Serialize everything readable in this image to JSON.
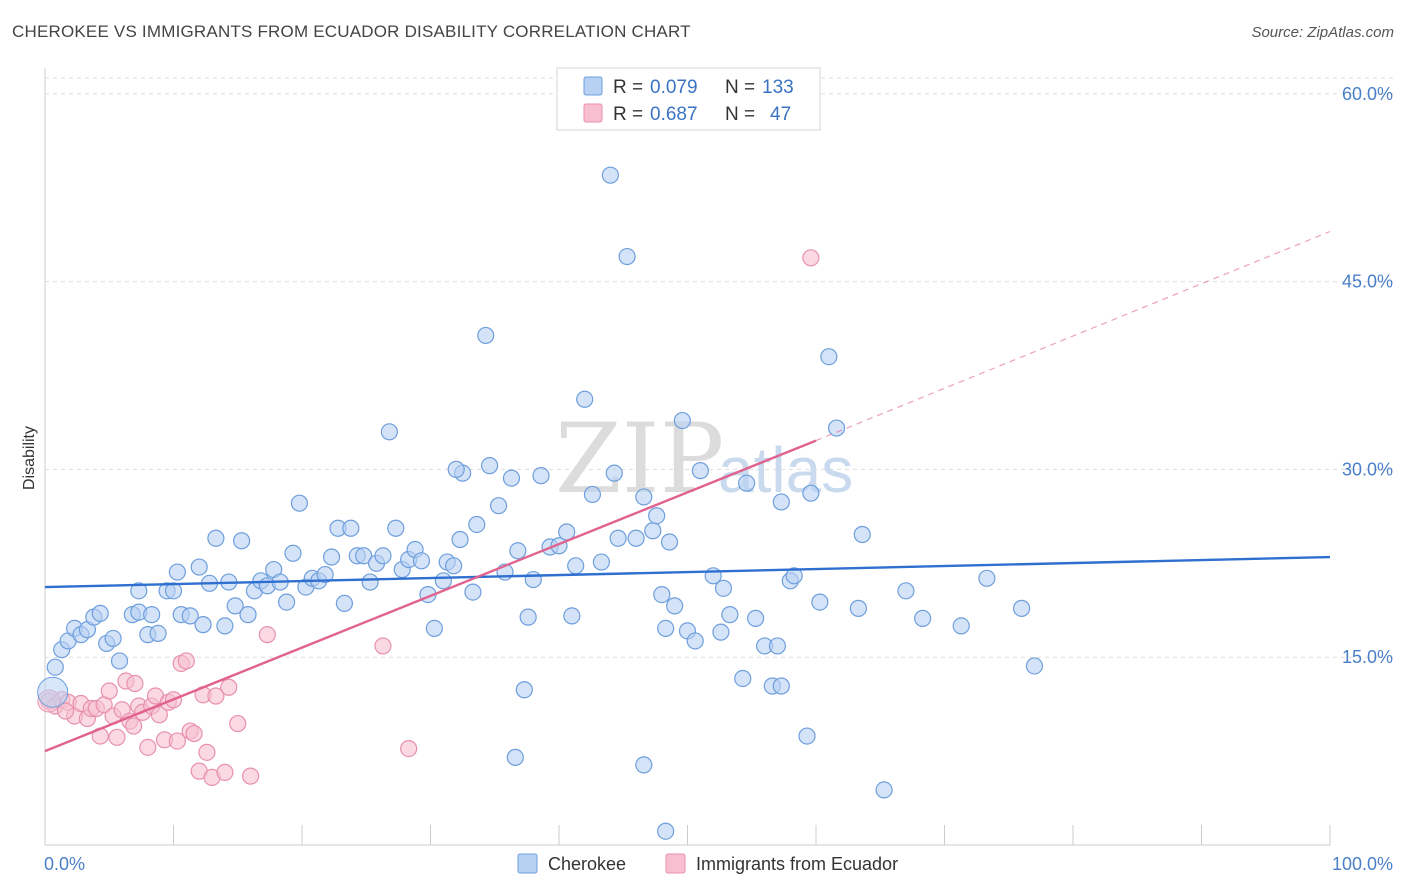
{
  "title": "CHEROKEE VS IMMIGRANTS FROM ECUADOR DISABILITY CORRELATION CHART",
  "source": "Source: ZipAtlas.com",
  "watermark": {
    "main": "ZIP",
    "sub": "atlas"
  },
  "colors": {
    "cherokee_fill": "#b7d1f3",
    "cherokee_stroke": "#6e9fdc",
    "cherokee_line": "#2f6fcf",
    "ecuador_fill": "#f7bfd0",
    "ecuador_stroke": "#e891ad",
    "ecuador_line": "#e0628e",
    "tick_text": "#4a7fc8",
    "grid": "#dddddd"
  },
  "legend": {
    "rows": [
      {
        "r_label": "R =",
        "r_value": "0.079",
        "n_label": "N =",
        "n_value": "133"
      },
      {
        "r_label": "R =",
        "r_value": "0.687",
        "n_label": "N =",
        "n_value": "47"
      }
    ]
  },
  "bottom_legend": [
    "Cherokee",
    "Immigrants from Ecuador"
  ],
  "chart_data": {
    "type": "scatter",
    "title": "CHEROKEE VS IMMIGRANTS FROM ECUADOR DISABILITY CORRELATION CHART",
    "xlabel": "",
    "ylabel": "Disability",
    "xlim": [
      0,
      100
    ],
    "ylim": [
      0,
      61.5
    ],
    "x_tick_labels": [
      {
        "value": 0,
        "label": "0.0%"
      },
      {
        "value": 100,
        "label": "100.0%"
      }
    ],
    "y_tick_labels": [
      {
        "value": 15,
        "label": "15.0%"
      },
      {
        "value": 30,
        "label": "30.0%"
      },
      {
        "value": 45,
        "label": "45.0%"
      },
      {
        "value": 60,
        "label": "60.0%"
      }
    ],
    "grid": "horizontal dashed",
    "legend_position": "top-center",
    "series": [
      {
        "name": "Cherokee",
        "trend": {
          "x0": 0,
          "y0": 20.6,
          "x1": 100,
          "y1": 23.0
        },
        "points": [
          [
            0.8,
            14.2
          ],
          [
            1.3,
            15.6
          ],
          [
            1.8,
            16.3
          ],
          [
            2.3,
            17.3
          ],
          [
            2.8,
            16.8
          ],
          [
            3.3,
            17.2
          ],
          [
            3.8,
            18.2
          ],
          [
            4.3,
            18.5
          ],
          [
            4.8,
            16.1
          ],
          [
            5.3,
            16.5
          ],
          [
            5.8,
            14.7
          ],
          [
            6.8,
            18.4
          ],
          [
            7.3,
            18.6
          ],
          [
            7.3,
            20.3
          ],
          [
            8.0,
            16.8
          ],
          [
            8.3,
            18.4
          ],
          [
            8.8,
            16.9
          ],
          [
            9.5,
            20.3
          ],
          [
            10.0,
            20.3
          ],
          [
            10.3,
            21.8
          ],
          [
            10.6,
            18.4
          ],
          [
            11.3,
            18.3
          ],
          [
            12.0,
            22.2
          ],
          [
            12.3,
            17.6
          ],
          [
            12.8,
            20.9
          ],
          [
            13.3,
            24.5
          ],
          [
            14.0,
            17.5
          ],
          [
            14.3,
            21.0
          ],
          [
            14.8,
            19.1
          ],
          [
            15.3,
            24.3
          ],
          [
            15.8,
            18.4
          ],
          [
            16.3,
            20.3
          ],
          [
            16.8,
            21.1
          ],
          [
            17.3,
            20.7
          ],
          [
            17.8,
            22.0
          ],
          [
            18.3,
            21.0
          ],
          [
            18.8,
            19.4
          ],
          [
            19.3,
            23.3
          ],
          [
            19.8,
            27.3
          ],
          [
            20.3,
            20.6
          ],
          [
            20.8,
            21.3
          ],
          [
            21.3,
            21.1
          ],
          [
            21.8,
            21.6
          ],
          [
            22.3,
            23.0
          ],
          [
            22.8,
            25.3
          ],
          [
            23.3,
            19.3
          ],
          [
            23.8,
            25.3
          ],
          [
            24.3,
            23.1
          ],
          [
            24.8,
            23.1
          ],
          [
            25.3,
            21.0
          ],
          [
            25.8,
            22.5
          ],
          [
            26.3,
            23.1
          ],
          [
            26.8,
            33.0
          ],
          [
            27.3,
            25.3
          ],
          [
            27.8,
            22.0
          ],
          [
            28.3,
            22.8
          ],
          [
            28.8,
            23.6
          ],
          [
            29.3,
            22.7
          ],
          [
            29.8,
            20.0
          ],
          [
            30.3,
            17.3
          ],
          [
            31.0,
            21.1
          ],
          [
            31.3,
            22.6
          ],
          [
            31.8,
            22.3
          ],
          [
            32.3,
            24.4
          ],
          [
            32.5,
            29.7
          ],
          [
            33.3,
            20.2
          ],
          [
            33.6,
            25.6
          ],
          [
            34.3,
            40.7
          ],
          [
            34.6,
            30.3
          ],
          [
            35.3,
            27.1
          ],
          [
            35.8,
            21.8
          ],
          [
            36.3,
            29.3
          ],
          [
            36.8,
            23.5
          ],
          [
            37.3,
            12.4
          ],
          [
            37.6,
            18.2
          ],
          [
            38.0,
            21.2
          ],
          [
            38.6,
            29.5
          ],
          [
            39.3,
            23.8
          ],
          [
            40.0,
            23.9
          ],
          [
            40.6,
            25.0
          ],
          [
            41.0,
            18.3
          ],
          [
            41.3,
            22.3
          ],
          [
            42.0,
            35.6
          ],
          [
            42.6,
            28.0
          ],
          [
            43.3,
            22.6
          ],
          [
            44.0,
            53.5
          ],
          [
            44.3,
            29.7
          ],
          [
            44.6,
            24.5
          ],
          [
            45.3,
            47.0
          ],
          [
            46.0,
            24.5
          ],
          [
            46.6,
            27.8
          ],
          [
            47.3,
            25.1
          ],
          [
            47.6,
            26.3
          ],
          [
            48.0,
            20.0
          ],
          [
            48.3,
            17.3
          ],
          [
            48.6,
            24.2
          ],
          [
            49.0,
            19.1
          ],
          [
            49.6,
            33.9
          ],
          [
            50.0,
            17.1
          ],
          [
            50.6,
            16.3
          ],
          [
            51.0,
            29.9
          ],
          [
            52.0,
            21.5
          ],
          [
            52.6,
            17.0
          ],
          [
            52.8,
            20.5
          ],
          [
            53.3,
            18.4
          ],
          [
            54.3,
            13.3
          ],
          [
            54.6,
            28.9
          ],
          [
            55.3,
            18.1
          ],
          [
            56.0,
            15.9
          ],
          [
            56.6,
            12.7
          ],
          [
            57.0,
            15.9
          ],
          [
            57.3,
            27.4
          ],
          [
            58.0,
            21.1
          ],
          [
            58.3,
            21.5
          ],
          [
            59.3,
            8.7
          ],
          [
            59.6,
            28.1
          ],
          [
            60.3,
            19.4
          ],
          [
            61.0,
            39.0
          ],
          [
            61.6,
            33.3
          ],
          [
            63.3,
            18.9
          ],
          [
            63.6,
            24.8
          ],
          [
            65.3,
            4.4
          ],
          [
            67.0,
            20.3
          ],
          [
            68.3,
            18.1
          ],
          [
            71.3,
            17.5
          ],
          [
            73.3,
            21.3
          ],
          [
            76.0,
            18.9
          ],
          [
            77.0,
            14.3
          ],
          [
            36.6,
            7.0
          ],
          [
            46.6,
            6.4
          ],
          [
            48.3,
            1.1
          ],
          [
            57.3,
            12.7
          ],
          [
            32.0,
            30.0
          ]
        ]
      },
      {
        "name": "Immigrants from Ecuador",
        "trend": {
          "x0": 0,
          "y0": 7.5,
          "x1": 60,
          "y1": 32.3
        },
        "trend_dashed_extension": {
          "x0": 60,
          "y0": 32.3,
          "x1": 100,
          "y1": 49.0
        },
        "points": [
          [
            0.3,
            11.5
          ],
          [
            0.8,
            11.1
          ],
          [
            1.3,
            11.6
          ],
          [
            1.8,
            11.4
          ],
          [
            2.3,
            10.3
          ],
          [
            2.8,
            11.3
          ],
          [
            3.3,
            10.1
          ],
          [
            3.6,
            10.9
          ],
          [
            4.0,
            10.9
          ],
          [
            4.3,
            8.7
          ],
          [
            4.6,
            11.2
          ],
          [
            5.0,
            12.3
          ],
          [
            5.3,
            10.3
          ],
          [
            5.6,
            8.6
          ],
          [
            6.0,
            10.8
          ],
          [
            6.3,
            13.1
          ],
          [
            6.6,
            9.9
          ],
          [
            7.0,
            12.9
          ],
          [
            7.3,
            11.1
          ],
          [
            7.6,
            10.6
          ],
          [
            8.0,
            7.8
          ],
          [
            8.3,
            11.1
          ],
          [
            8.6,
            11.9
          ],
          [
            8.9,
            10.4
          ],
          [
            9.3,
            8.4
          ],
          [
            9.6,
            11.4
          ],
          [
            10.0,
            11.6
          ],
          [
            10.3,
            8.3
          ],
          [
            10.6,
            14.5
          ],
          [
            11.0,
            14.7
          ],
          [
            11.3,
            9.1
          ],
          [
            11.6,
            8.9
          ],
          [
            12.0,
            5.9
          ],
          [
            12.3,
            12.0
          ],
          [
            12.6,
            7.4
          ],
          [
            13.0,
            5.4
          ],
          [
            14.0,
            5.8
          ],
          [
            14.3,
            12.6
          ],
          [
            15.0,
            9.7
          ],
          [
            16.0,
            5.5
          ],
          [
            17.3,
            16.8
          ],
          [
            26.3,
            15.9
          ],
          [
            28.3,
            7.7
          ],
          [
            59.6,
            46.9
          ],
          [
            1.6,
            10.7
          ],
          [
            6.9,
            9.5
          ],
          [
            13.3,
            11.9
          ]
        ]
      }
    ]
  }
}
